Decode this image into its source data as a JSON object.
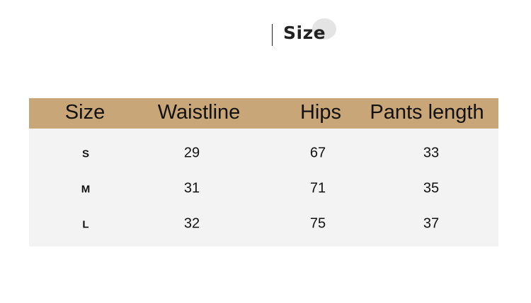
{
  "title": "Size",
  "table": {
    "headers": [
      "Size",
      "Waistline",
      "Hips",
      "Pants length"
    ],
    "rows": [
      [
        "S",
        "29",
        "67",
        "33"
      ],
      [
        "M",
        "31",
        "71",
        "35"
      ],
      [
        "L",
        "32",
        "75",
        "37"
      ]
    ]
  },
  "colors": {
    "header_bg": "#c9a677",
    "body_bg": "#f3f3f3"
  }
}
